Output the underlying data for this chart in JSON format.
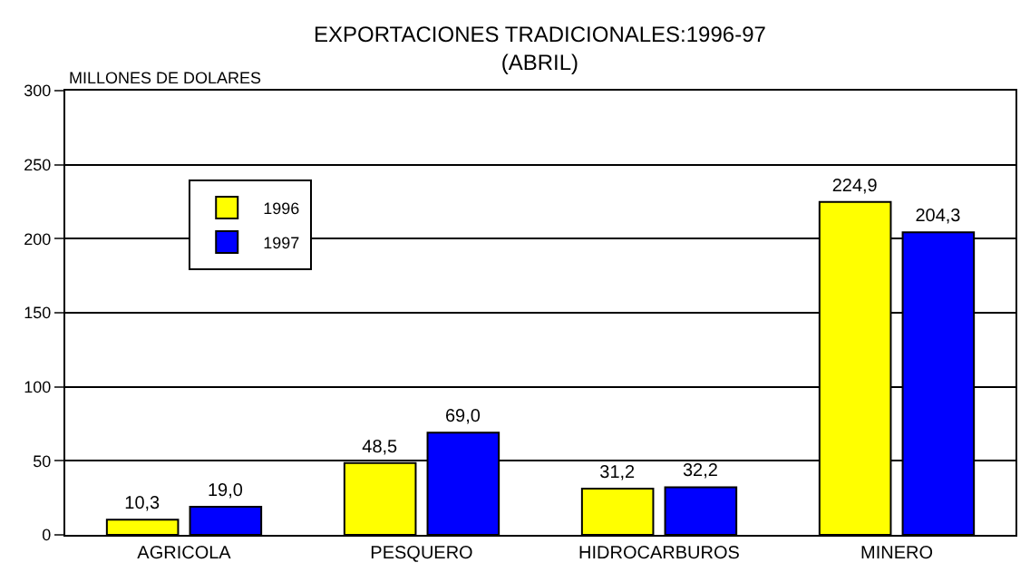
{
  "chart_data": {
    "type": "bar",
    "title": "EXPORTACIONES TRADICIONALES:1996-97\n(ABRIL)",
    "ylabel": "MILLONES DE DOLARES",
    "categories": [
      "AGRICOLA",
      "PESQUERO",
      "HIDROCARBUROS",
      "MINERO"
    ],
    "series": [
      {
        "name": "1996",
        "color": "#ffff00",
        "values": [
          10.3,
          48.5,
          31.2,
          224.9
        ],
        "value_labels": [
          "10,3",
          "48,5",
          "31,2",
          "224,9"
        ]
      },
      {
        "name": "1997",
        "color": "#0000ff",
        "values": [
          19.0,
          69.0,
          32.2,
          204.3
        ],
        "value_labels": [
          "19,0",
          "69,0",
          "32,2",
          "204,3"
        ]
      }
    ],
    "ylim": [
      0,
      300
    ],
    "yticks": [
      0,
      50,
      100,
      150,
      200,
      250,
      300
    ],
    "grid": "y",
    "legend": "top left"
  }
}
